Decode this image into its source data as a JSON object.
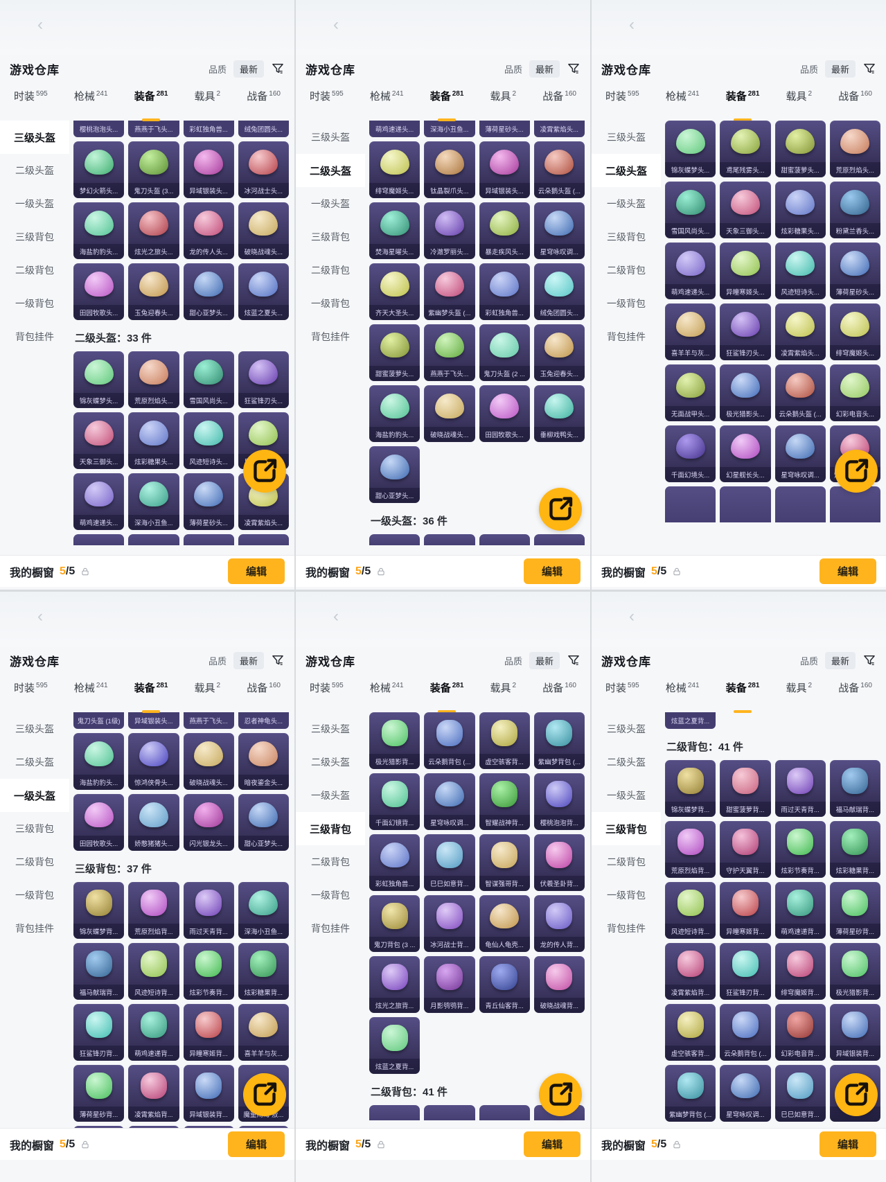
{
  "app": {
    "title": "游戏仓库",
    "sort_quality_label": "品质",
    "sort_latest_label": "最新",
    "filter_icon": "funnel-icon",
    "back_icon": "back-chevron-icon",
    "tabs": [
      {
        "label": "时装",
        "count": "595",
        "selected": false
      },
      {
        "label": "枪械",
        "count": "241",
        "selected": false
      },
      {
        "label": "装备",
        "count": "281",
        "selected": true
      },
      {
        "label": "载具",
        "count": "2",
        "selected": false
      },
      {
        "label": "战备",
        "count": "160",
        "selected": false
      }
    ],
    "sidebar_items": [
      "三级头盔",
      "二级头盔",
      "一级头盔",
      "三级背包",
      "二级背包",
      "一级背包",
      "背包挂件"
    ],
    "footer": {
      "label": "我的橱窗",
      "count_current": "5",
      "count_total": "/5",
      "lock_icon": "lock-icon",
      "edit_label": "编辑"
    },
    "share_icon": "share-icon"
  },
  "colors": {
    "accent": "#FFB41E",
    "tile_top": "#554E85",
    "tile_bottom": "#2C2749",
    "panel_bg": "#F6F7F9"
  },
  "panels": [
    {
      "selected_sidebar": 0,
      "blocks": [
        {
          "type": "sliver",
          "labels": [
            "樱桃泡泡头...",
            "燕燕于飞头...",
            "彩虹独角兽...",
            "绒兔团圆头..."
          ]
        },
        {
          "type": "items",
          "items": [
            "梦幻火箭头...",
            "鬼刀头盔 (3...",
            "异域银装头...",
            "冰河战士头...",
            "海盐豹豹头...",
            "炫光之旅头...",
            "龙的传人头...",
            "破晓战魂头...",
            "田园牧歌头...",
            "玉兔迎春头...",
            "甜心亚梦头...",
            "炫蓝之夏头..."
          ]
        },
        {
          "type": "section",
          "text": "二级头盔：33 件"
        },
        {
          "type": "items",
          "items": [
            "锦灰蝶梦头...",
            "荒原烈焰头...",
            "雪国风尚头...",
            "狂鲨锋刃头...",
            "天象三御头...",
            "炫彩糖果头...",
            "风迹短诗头...",
            "异瞳寒姬头...",
            "萌鸡速递头...",
            "深海小丑鱼...",
            "薄荷星砂头...",
            "凌霄紫焰头..."
          ]
        },
        {
          "type": "stubs",
          "count": 4
        }
      ]
    },
    {
      "selected_sidebar": 1,
      "blocks": [
        {
          "type": "sliver",
          "labels": [
            "萌鸡速递头...",
            "深海小丑鱼...",
            "薄荷星砂头...",
            "凌霄紫焰头..."
          ]
        },
        {
          "type": "items",
          "items": [
            "绯穹魔姬头...",
            "钛晶裂爪头...",
            "异域银装头...",
            "云朵鹅头盔 (...",
            "焚海星曜头...",
            "冷澈罗丽头...",
            "暴走疾风头...",
            "星穹咏叹调...",
            "齐天大圣头...",
            "紫幽梦头盔 (...",
            "彩虹独角兽...",
            "绒兔团圆头...",
            "甜蜜菠萝头...",
            "燕燕于飞头...",
            "鬼刀头盔 (2 ...",
            "玉兔迎春头...",
            "海盐豹豹头...",
            "破晓战魂头...",
            "田园牧歌头...",
            "垂柳戏鸭头...",
            "甜心亚梦头..."
          ]
        },
        {
          "type": "section",
          "text": "一级头盔：36 件"
        },
        {
          "type": "stubs",
          "count": 4
        }
      ]
    },
    {
      "selected_sidebar": 1,
      "blocks": [
        {
          "type": "items",
          "items": [
            "锦灰蝶梦头...",
            "鸢尾残雾头...",
            "甜蜜菠萝头...",
            "荒原烈焰头...",
            "雪国风尚头...",
            "天象三御头...",
            "炫彩糖果头...",
            "粉黛兰香头...",
            "萌鸡速递头...",
            "异瞳寒姬头...",
            "风迹短诗头...",
            "薄荷星砂头...",
            "喜羊羊与灰...",
            "狂鲨锋刃头...",
            "凌霄紫焰头...",
            "绯穹魔姬头...",
            "无面战甲头...",
            "极光猎影头...",
            "云朵鹅头盔 (...",
            "幻彩电音头...",
            "千面幻境头...",
            "幻星舰长头...",
            "星穹咏叹调...",
            "紫幽梦头盔 (..."
          ]
        },
        {
          "type": "stubs",
          "count": 4
        }
      ]
    },
    {
      "selected_sidebar": 2,
      "blocks": [
        {
          "type": "sliver",
          "labels": [
            "鬼刀头盔 (1级)",
            "异域银装头...",
            "燕燕于飞头...",
            "忍者神龟头..."
          ]
        },
        {
          "type": "items",
          "items": [
            "海盐豹豹头...",
            "惊鸿侠骨头...",
            "破晓战魂头...",
            "暗夜鎏金头...",
            "田园牧歌头...",
            "娇憨猪猪头...",
            "闪光银龙头...",
            "甜心亚梦头..."
          ]
        },
        {
          "type": "section",
          "text": "三级背包：37 件"
        },
        {
          "type": "items",
          "items": [
            "锦灰蝶梦背...",
            "荒原烈焰背...",
            "雨过天青背...",
            "深海小丑鱼...",
            "福马献瑞背...",
            "风迹短诗背...",
            "炫彩节奏背...",
            "炫彩糖果背...",
            "狂鲨锋刃背...",
            "萌鸡速递背...",
            "异瞳寒姬背...",
            "喜羊羊与灰...",
            "薄荷星砂背...",
            "凌霄紫焰背...",
            "异域银装背...",
            "魔童闹海 敖..."
          ]
        },
        {
          "type": "stubs",
          "count": 4
        }
      ]
    },
    {
      "selected_sidebar": 3,
      "blocks": [
        {
          "type": "items",
          "items": [
            "极光猎影背...",
            "云朵鹅背包 (...",
            "虚空骇客背...",
            "紫幽梦背包 (...",
            "千面幻镜背...",
            "星穹咏叹调...",
            "智耀战神背...",
            "樱桃泡泡背...",
            "彩虹独角兽...",
            "巳巳如意背...",
            "智谋强哥背...",
            "伏羲圣卦背...",
            "鬼刀背包 (3 ...",
            "冰河战士背...",
            "龟仙人龟壳...",
            "龙的传人背...",
            "炫光之旅背...",
            "月影鸮鸮背...",
            "青丘仙客背...",
            "破晓战魂背...",
            "炫蓝之夏背..."
          ]
        },
        {
          "type": "section",
          "text": "二级背包：41 件"
        },
        {
          "type": "stubs",
          "count": 4
        }
      ]
    },
    {
      "selected_sidebar": 3,
      "blocks": [
        {
          "type": "sliver",
          "labels": [
            "炫蓝之夏背..."
          ]
        },
        {
          "type": "section",
          "text": "二级背包：41 件"
        },
        {
          "type": "items",
          "items": [
            "锦灰蝶梦背...",
            "甜蜜菠萝背...",
            "雨过天青背...",
            "福马献瑞背...",
            "荒原烈焰背...",
            "守护天翼背...",
            "炫彩节奏背...",
            "炫彩糖果背...",
            "风迹短诗背...",
            "异瞳寒姬背...",
            "萌鸡速递背...",
            "薄荷星砂背...",
            "凌霄紫焰背...",
            "狂鲨锋刃背...",
            "绯穹魔姬背...",
            "极光猎影背...",
            "虚空骇客背...",
            "云朵鹅背包 (...",
            "幻彩电音背...",
            "异域银装背...",
            "紫幽梦背包 (...",
            "星穹咏叹调...",
            "巳巳如意背...",
            ""
          ]
        }
      ]
    }
  ]
}
